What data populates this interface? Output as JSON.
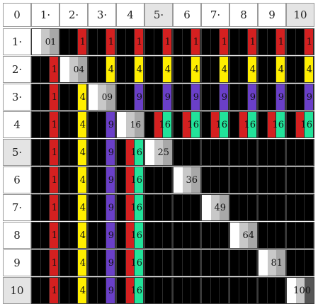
{
  "corner_label": "0",
  "col_labels": [
    "1·",
    "2·",
    "3·",
    "4",
    "5·",
    "6",
    "7·",
    "8",
    "9",
    "10"
  ],
  "row_labels": [
    "1·",
    "2·",
    "3·",
    "4",
    "5·",
    "6",
    "7·",
    "8",
    "9",
    "10"
  ],
  "highlighted_cols": [
    5,
    10
  ],
  "highlighted_rows": [
    5,
    10
  ],
  "colors": {
    "red": "#d42020",
    "yellow": "#ffee00",
    "purple": "#6a3fc8",
    "green": "#22e39a",
    "black": "#000000"
  },
  "factor_colors": [
    "red",
    "yellow",
    "purple",
    "green"
  ],
  "squares": [
    "01",
    "04",
    "09",
    "16",
    "25",
    "36",
    "49",
    "64",
    "81",
    "100"
  ],
  "square_tags": [
    "sq-1",
    "sq-4",
    "sq-9",
    "sq-16",
    "sq-25",
    "sq-36",
    "sq-49",
    "sq-64",
    "sq-81",
    "sq-100"
  ],
  "factor_values": [
    "1",
    "4",
    "9",
    "16"
  ]
}
